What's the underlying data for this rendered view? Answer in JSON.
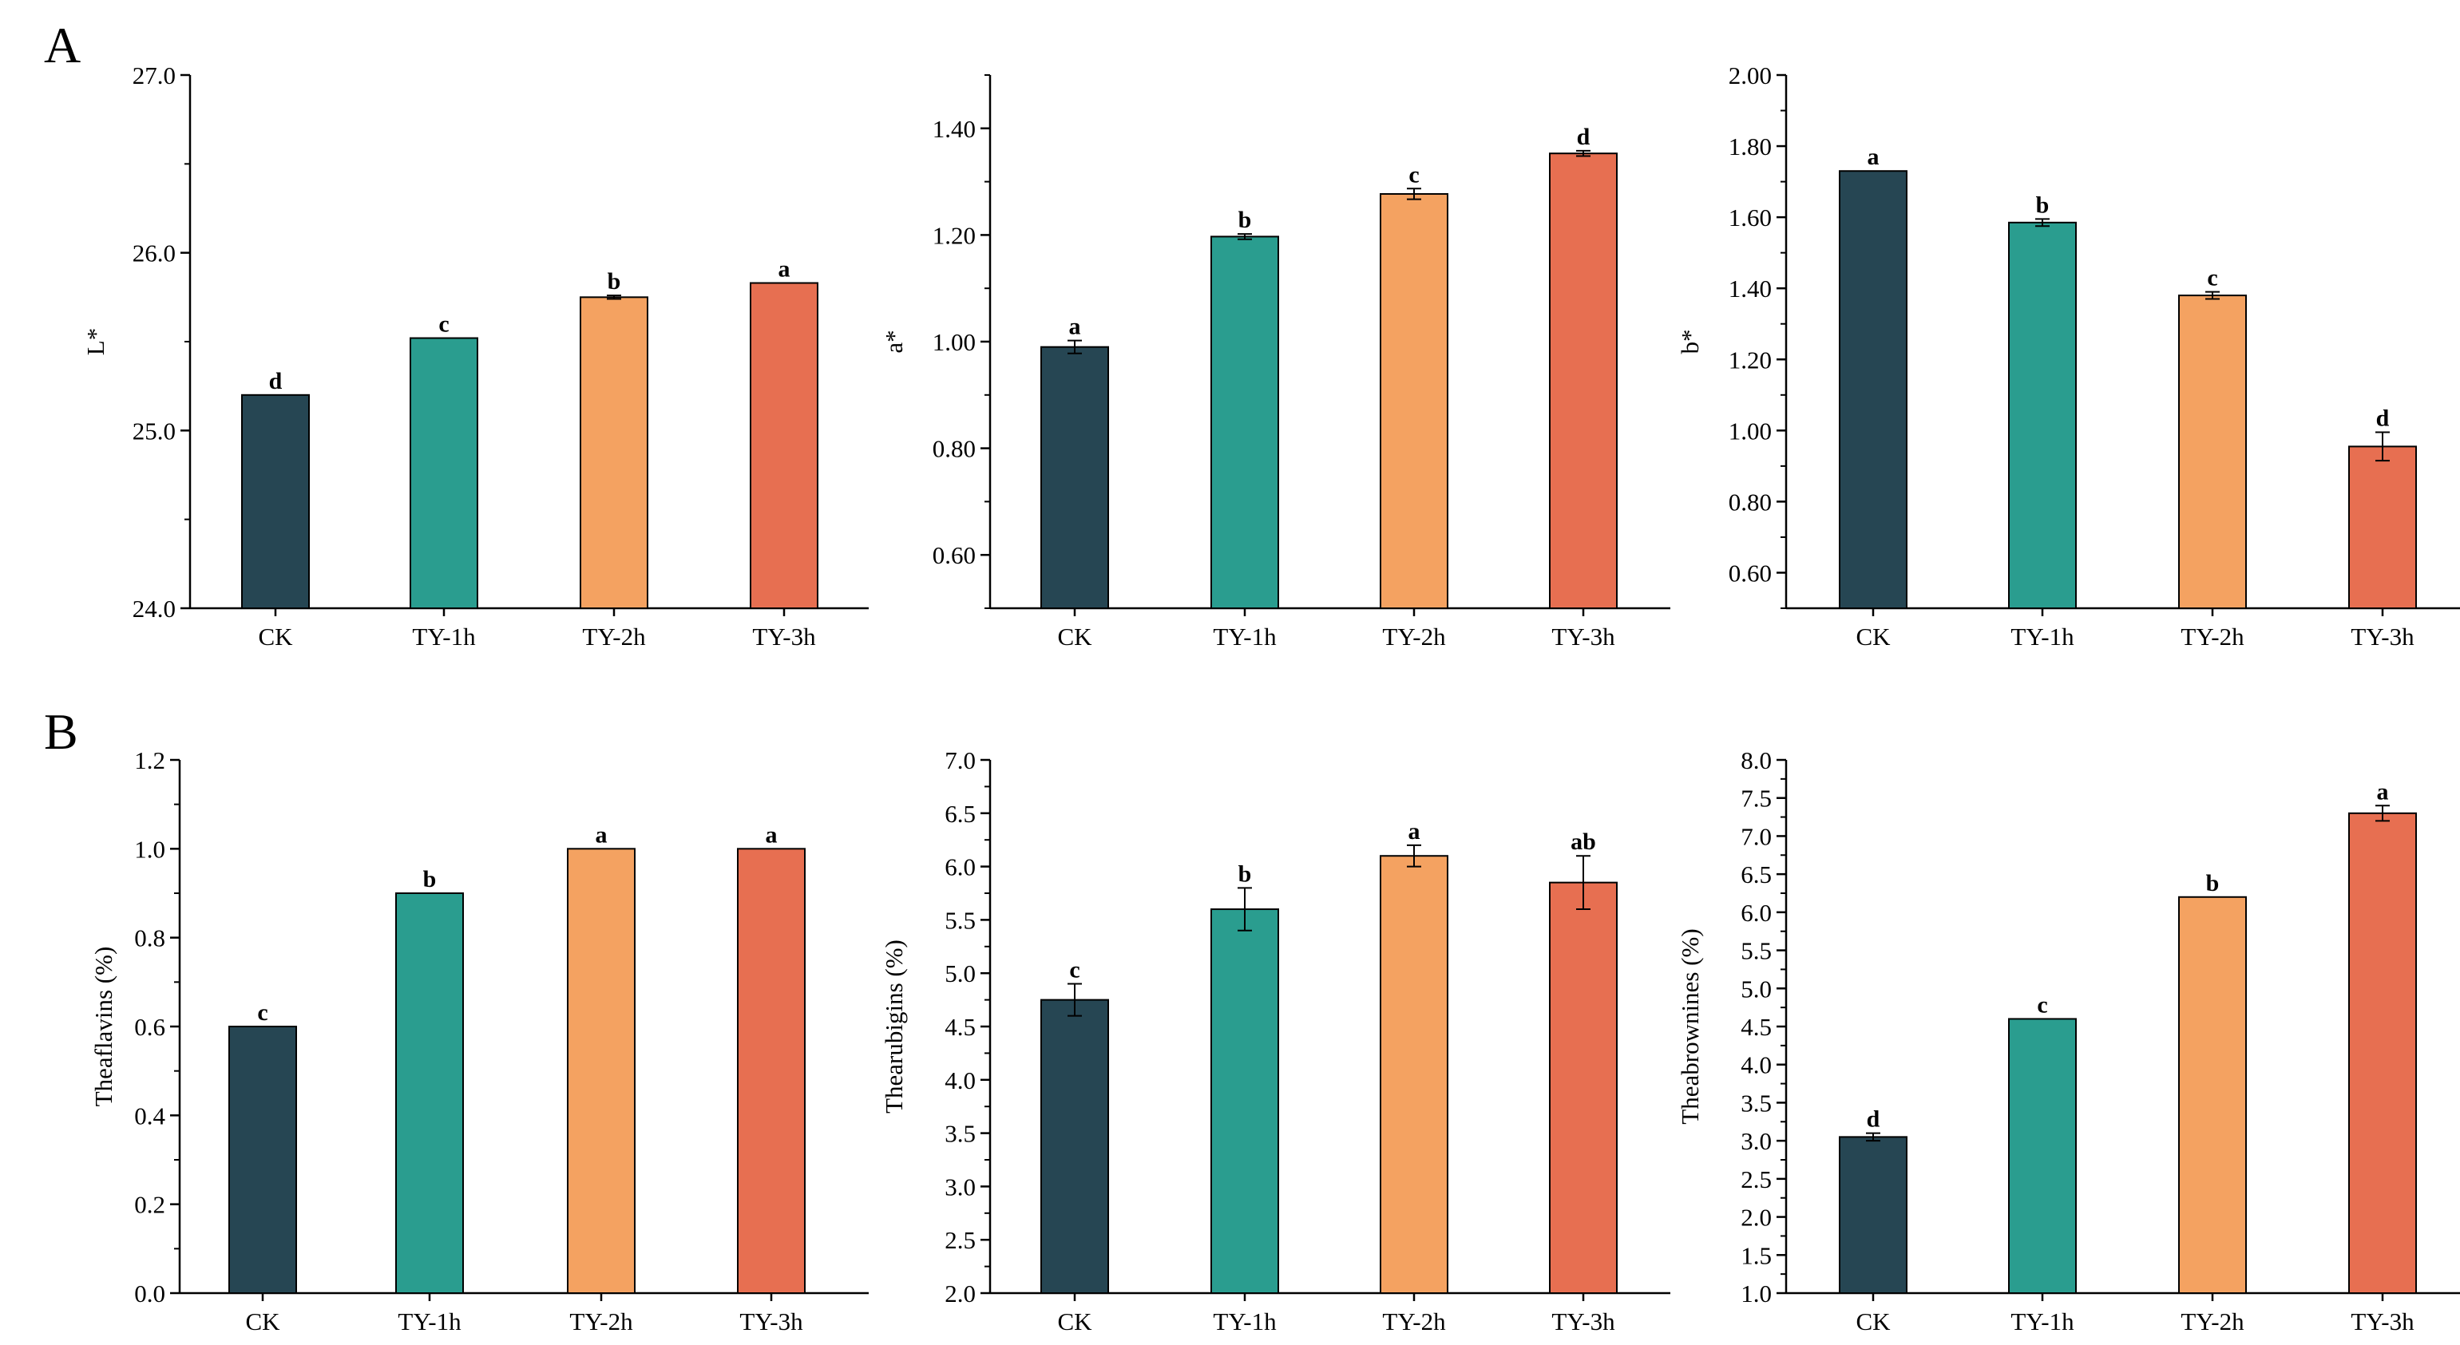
{
  "panel_labels": [
    "A",
    "B"
  ],
  "colors": {
    "CK": "#264653",
    "TY-1h": "#2a9d8f",
    "TY-2h": "#f4a261",
    "TY-3h": "#e76f51",
    "axis": "#000000"
  },
  "chart_data": [
    {
      "type": "bar",
      "panel": "A",
      "categories": [
        "CK",
        "TY-1h",
        "TY-2h",
        "TY-3h"
      ],
      "values": [
        25.2,
        25.52,
        25.75,
        25.83
      ],
      "errors": [
        0.0,
        0.0,
        0.01,
        0.0
      ],
      "letters": [
        "d",
        "c",
        "b",
        "a"
      ],
      "ylabel": "L*",
      "ylim": [
        24.0,
        27.0
      ],
      "yticks": [
        "24.0",
        "25.0",
        "26.0",
        "27.0"
      ],
      "minor_per_major": 2,
      "grid": false
    },
    {
      "type": "bar",
      "panel": "A",
      "categories": [
        "CK",
        "TY-1h",
        "TY-2h",
        "TY-3h"
      ],
      "values": [
        0.99,
        1.197,
        1.277,
        1.353
      ],
      "errors": [
        0.012,
        0.005,
        0.01,
        0.005
      ],
      "letters": [
        "a",
        "b",
        "c",
        "d"
      ],
      "ylabel": "a*",
      "ylim": [
        0.5,
        1.5
      ],
      "yticks": [
        "0.60",
        "0.80",
        "1.00",
        "1.20",
        "1.40"
      ],
      "minor_per_major": 2,
      "grid": false
    },
    {
      "type": "bar",
      "panel": "A",
      "categories": [
        "CK",
        "TY-1h",
        "TY-2h",
        "TY-3h"
      ],
      "values": [
        1.73,
        1.585,
        1.38,
        0.955
      ],
      "errors": [
        0.0,
        0.01,
        0.01,
        0.04
      ],
      "letters": [
        "a",
        "b",
        "c",
        "d"
      ],
      "ylabel": "b*",
      "ylim": [
        0.5,
        2.0
      ],
      "yticks": [
        "0.60",
        "0.80",
        "1.00",
        "1.20",
        "1.40",
        "1.60",
        "1.80",
        "2.00"
      ],
      "minor_per_major": 2,
      "grid": false
    },
    {
      "type": "bar",
      "panel": "B",
      "categories": [
        "CK",
        "TY-1h",
        "TY-2h",
        "TY-3h"
      ],
      "values": [
        0.6,
        0.9,
        1.0,
        1.0
      ],
      "errors": [
        0.0,
        0.0,
        0.0,
        0.0
      ],
      "letters": [
        "c",
        "b",
        "a",
        "a"
      ],
      "ylabel": "Theaflavins (%)",
      "ylim": [
        0.0,
        1.2
      ],
      "yticks": [
        "0.0",
        "0.2",
        "0.4",
        "0.6",
        "0.8",
        "1.0",
        "1.2"
      ],
      "minor_per_major": 2,
      "grid": false
    },
    {
      "type": "bar",
      "panel": "B",
      "categories": [
        "CK",
        "TY-1h",
        "TY-2h",
        "TY-3h"
      ],
      "values": [
        4.75,
        5.6,
        6.1,
        5.85
      ],
      "errors": [
        0.15,
        0.2,
        0.1,
        0.25
      ],
      "letters": [
        "c",
        "b",
        "a",
        "ab"
      ],
      "ylabel": "Thearubigins (%)",
      "ylim": [
        2.0,
        7.0
      ],
      "yticks": [
        "2.0",
        "2.5",
        "3.0",
        "3.5",
        "4.0",
        "4.5",
        "5.0",
        "5.5",
        "6.0",
        "6.5",
        "7.0"
      ],
      "minor_per_major": 2,
      "grid": false
    },
    {
      "type": "bar",
      "panel": "B",
      "categories": [
        "CK",
        "TY-1h",
        "TY-2h",
        "TY-3h"
      ],
      "values": [
        3.05,
        4.6,
        6.2,
        7.3
      ],
      "errors": [
        0.05,
        0.0,
        0.0,
        0.1
      ],
      "letters": [
        "d",
        "c",
        "b",
        "a"
      ],
      "ylabel": "Theabrownines (%)",
      "ylim": [
        1.0,
        8.0
      ],
      "yticks": [
        "1.0",
        "1.5",
        "2.0",
        "2.5",
        "3.0",
        "3.5",
        "4.0",
        "4.5",
        "5.0",
        "5.5",
        "6.0",
        "6.5",
        "7.0",
        "7.5",
        "8.0"
      ],
      "minor_per_major": 2,
      "grid": false
    }
  ]
}
